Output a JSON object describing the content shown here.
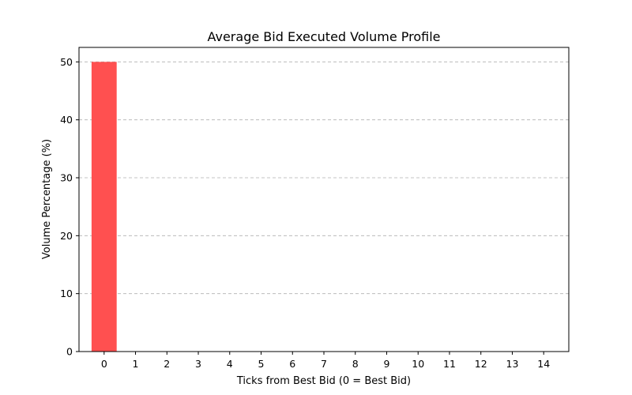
{
  "chart_data": {
    "type": "bar",
    "title": "Average Bid Executed Volume Profile",
    "xlabel": "Ticks from Best Bid (0 = Best Bid)",
    "ylabel": "Volume Percentage (%)",
    "categories": [
      "0",
      "1",
      "2",
      "3",
      "4",
      "5",
      "6",
      "7",
      "8",
      "9",
      "10",
      "11",
      "12",
      "13",
      "14"
    ],
    "values": [
      50,
      0,
      0,
      0,
      0,
      0,
      0,
      0,
      0,
      0,
      0,
      0,
      0,
      0,
      0
    ],
    "ylim": [
      0,
      52.5
    ],
    "yticks": [
      0,
      10,
      20,
      30,
      40,
      50
    ],
    "bar_color": "#ff5050",
    "grid": "y-dashed",
    "legend": "none"
  }
}
